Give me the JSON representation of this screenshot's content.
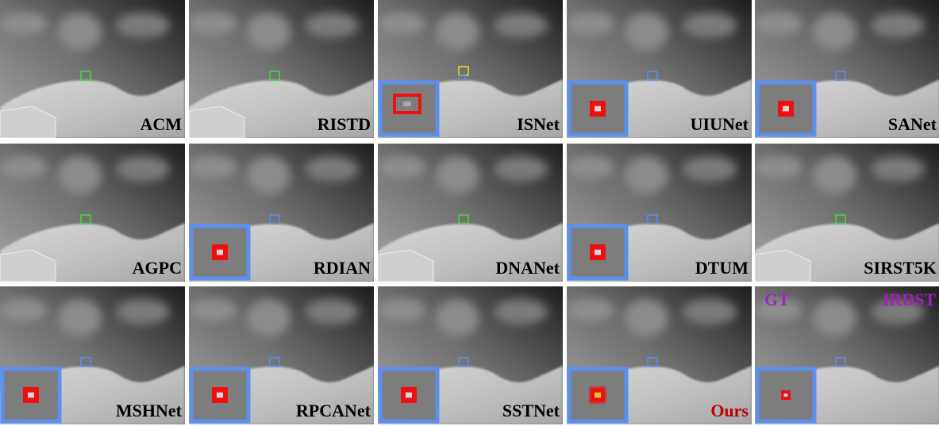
{
  "panels": [
    {
      "label": "ACM"
    },
    {
      "label": "RISTD"
    },
    {
      "label": "ISNet"
    },
    {
      "label": "UIUNet"
    },
    {
      "label": "SANet"
    },
    {
      "label": "AGPC"
    },
    {
      "label": "RDIAN"
    },
    {
      "label": "DNANet"
    },
    {
      "label": "DTUM"
    },
    {
      "label": "SIRST5K"
    },
    {
      "label": "MSHNet"
    },
    {
      "label": "RPCANet"
    },
    {
      "label": "SSTNet"
    },
    {
      "label": "Ours"
    },
    {
      "tag": "GT",
      "label": "IRDST"
    }
  ]
}
